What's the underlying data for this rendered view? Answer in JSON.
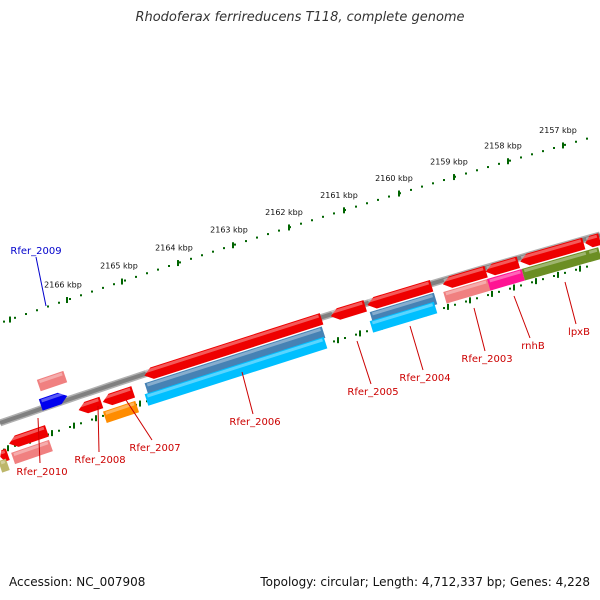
{
  "title": "Rhodoferax ferrireducens T118, complete genome",
  "footer": {
    "accession": "Accession: NC_007908",
    "topology": "Topology: circular; Length: 4,712,337 bp; Genes: 4,228"
  },
  "colors": {
    "gene": "#ee0000",
    "gene_pale": "#f08080",
    "gene_orange": "#ff8c00",
    "gene_magenta": "#ff1493",
    "gene_olive": "#6b8e23",
    "gene_khaki": "#bdb76b",
    "gene_blue": "#0000ee",
    "gene_steel": "#4682b4",
    "gene_cyan": "#00bfff",
    "backbone": "#808080",
    "ticks": "#006400",
    "label_red": "#cc0000",
    "label_blue": "#0000cc"
  },
  "scale_labels": [
    "2157 kbp",
    "2158 kbp",
    "2159 kbp",
    "2160 kbp",
    "2161 kbp",
    "2162 kbp",
    "2163 kbp",
    "2164 kbp",
    "2165 kbp",
    "2166 kbp"
  ],
  "gene_labels": [
    "Rfer_2009",
    "Rfer_2010",
    "Rfer_2008",
    "Rfer_2007",
    "Rfer_2006",
    "Rfer_2005",
    "Rfer_2004",
    "Rfer_2003",
    "rnhB",
    "lpxB"
  ]
}
